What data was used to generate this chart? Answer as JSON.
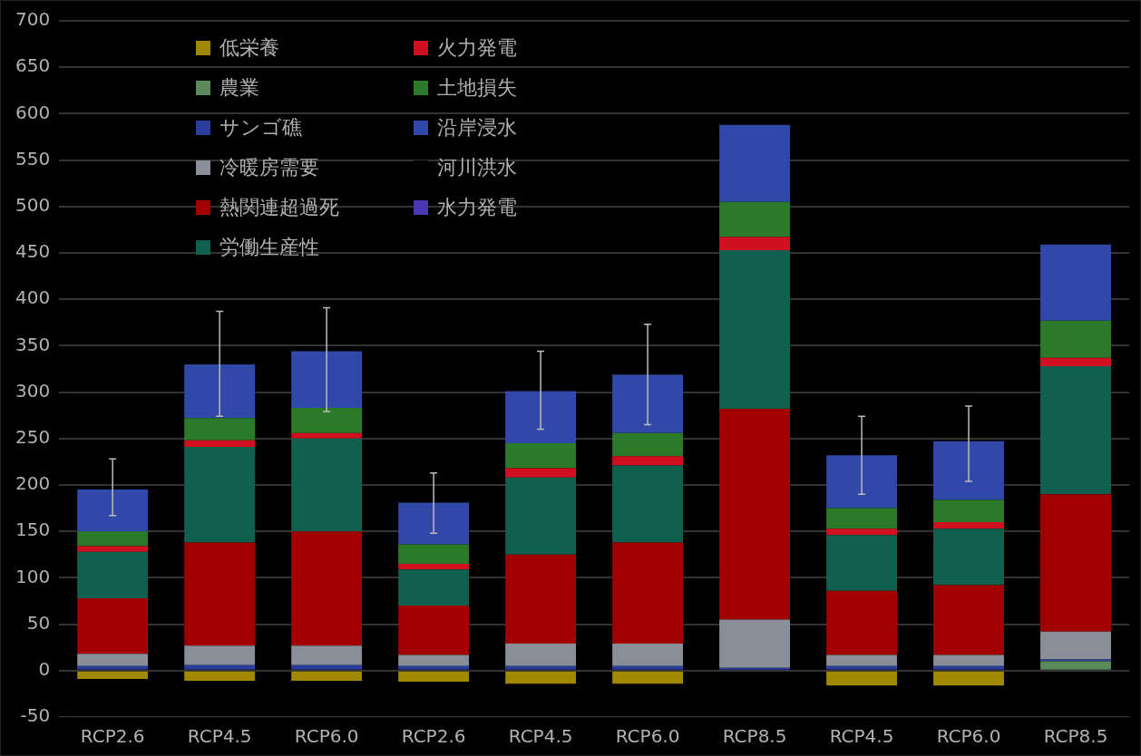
{
  "chart_data": {
    "type": "bar",
    "stacked": true,
    "categories": [
      "RCP2.6",
      "RCP4.5",
      "RCP6.0",
      "RCP2.6",
      "RCP4.5",
      "RCP6.0",
      "RCP8.5",
      "RCP4.5",
      "RCP6.0",
      "RCP8.5"
    ],
    "ylim": [
      -50,
      700
    ],
    "yticks": [
      -50,
      0,
      50,
      100,
      150,
      200,
      250,
      300,
      350,
      400,
      450,
      500,
      550,
      600,
      650,
      700
    ],
    "grid": "y",
    "legend": "top left",
    "series": [
      {
        "name": "低栄養",
        "color": "#a08800",
        "values": [
          -9,
          -11,
          -11,
          -12,
          -14,
          -14,
          0,
          -16,
          -16,
          0
        ]
      },
      {
        "name": "農業",
        "color": "#5a8a5a",
        "values": [
          0,
          0,
          0,
          0,
          0,
          0,
          0,
          0,
          0,
          10
        ]
      },
      {
        "name": "サンゴ礁",
        "color": "#2a3c9c",
        "values": [
          5,
          6,
          6,
          5,
          5,
          5,
          3,
          5,
          5,
          2
        ]
      },
      {
        "name": "冷暖房需要",
        "color": "#8a8e98",
        "values": [
          13,
          21,
          21,
          12,
          24,
          24,
          52,
          12,
          12,
          30
        ]
      },
      {
        "name": "熱関連超過死",
        "color": "#a00000",
        "values": [
          60,
          111,
          123,
          53,
          96,
          109,
          227,
          69,
          75,
          148
        ]
      },
      {
        "name": "労働生産性",
        "color": "#106050",
        "values": [
          50,
          103,
          100,
          39,
          83,
          83,
          171,
          60,
          61,
          138
        ]
      },
      {
        "name": "火力発電",
        "color": "#d01020",
        "values": [
          6,
          7,
          6,
          6,
          10,
          10,
          14,
          7,
          7,
          9
        ]
      },
      {
        "name": "土地損失",
        "color": "#2a7a2a",
        "values": [
          16,
          24,
          27,
          21,
          27,
          25,
          38,
          22,
          24,
          40
        ]
      },
      {
        "name": "沿岸浸水",
        "color": "#3048a8",
        "values": [
          45,
          58,
          61,
          45,
          56,
          63,
          83,
          57,
          63,
          82
        ],
        "errors": [
          [
            167,
            228
          ],
          [
            274,
            387
          ],
          [
            279,
            391
          ],
          [
            148,
            213
          ],
          [
            260,
            344
          ],
          [
            265,
            373
          ],
          null,
          [
            190,
            274
          ],
          [
            204,
            285
          ],
          null
        ]
      },
      {
        "name": "河川洪水",
        "color": "#000000",
        "values": [
          null,
          null,
          null,
          null,
          null,
          null,
          null,
          null,
          null,
          null
        ]
      },
      {
        "name": "水力発電",
        "color": "#4a36b0",
        "values": [
          null,
          null,
          null,
          null,
          null,
          null,
          null,
          null,
          null,
          null
        ]
      }
    ]
  }
}
